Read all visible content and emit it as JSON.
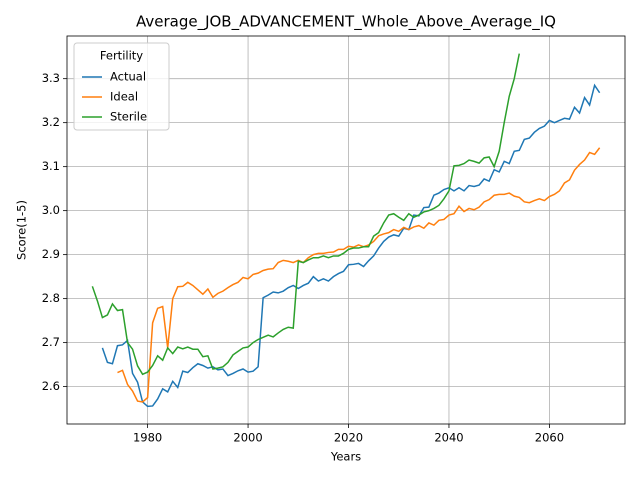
{
  "chart_data": {
    "type": "line",
    "title": "Average_JOB_ADVANCEMENT_Whole_Above_Average_IQ",
    "x_label": "Years",
    "y_label": "Score(1-5)",
    "legend_title": "Fertility",
    "legend_loc": "upper left",
    "grid": true,
    "xlim": [
      1963.95,
      2075.05
    ],
    "ylim": [
      2.515,
      3.397
    ],
    "xticks": [
      1980,
      2000,
      2020,
      2040,
      2060
    ],
    "yticks": [
      2.6,
      2.7,
      2.8,
      2.9,
      {
        "value": 3,
        "label": "3.0"
      },
      3.1,
      3.2,
      3.3
    ],
    "x": [
      1969,
      1970,
      1971,
      1972,
      1973,
      1974,
      1975,
      1976,
      1977,
      1978,
      1979,
      1980,
      1981,
      1982,
      1983,
      1984,
      1985,
      1986,
      1987,
      1988,
      1989,
      1990,
      1991,
      1992,
      1993,
      1994,
      1995,
      1996,
      1997,
      1998,
      1999,
      2000,
      2001,
      2002,
      2003,
      2004,
      2005,
      2006,
      2007,
      2008,
      2009,
      2010,
      2011,
      2012,
      2013,
      2014,
      2015,
      2016,
      2017,
      2018,
      2019,
      2020,
      2021,
      2022,
      2023,
      2024,
      2025,
      2026,
      2027,
      2028,
      2029,
      2030,
      2031,
      2032,
      2033,
      2034,
      2035,
      2036,
      2037,
      2038,
      2039,
      2040,
      2041,
      2042,
      2043,
      2044,
      2045,
      2046,
      2047,
      2048,
      2049,
      2050,
      2051,
      2052,
      2053,
      2054,
      2055,
      2056,
      2057,
      2058,
      2059,
      2060,
      2061,
      2062,
      2063,
      2064,
      2065,
      2066,
      2067,
      2068,
      2069,
      2070
    ],
    "series": [
      {
        "name": "Actual",
        "color": "#1f77b4",
        "values": [
          null,
          null,
          2.688,
          2.655,
          2.652,
          2.693,
          2.695,
          2.705,
          2.63,
          2.61,
          2.565,
          2.555,
          2.556,
          2.572,
          2.595,
          2.588,
          2.612,
          2.598,
          2.635,
          2.632,
          2.643,
          2.652,
          2.648,
          2.642,
          2.645,
          2.638,
          2.64,
          2.625,
          2.63,
          2.636,
          2.64,
          2.633,
          2.635,
          2.645,
          2.802,
          2.808,
          2.815,
          2.813,
          2.817,
          2.825,
          2.83,
          2.823,
          2.83,
          2.835,
          2.85,
          2.84,
          2.845,
          2.84,
          2.85,
          2.857,
          2.862,
          2.877,
          2.878,
          2.88,
          2.873,
          2.886,
          2.897,
          2.915,
          2.93,
          2.94,
          2.945,
          2.942,
          2.96,
          2.957,
          2.99,
          2.988,
          3.007,
          3.008,
          3.035,
          3.04,
          3.048,
          3.052,
          3.045,
          3.052,
          3.045,
          3.057,
          3.055,
          3.058,
          3.072,
          3.067,
          3.093,
          3.088,
          3.112,
          3.107,
          3.135,
          3.137,
          3.162,
          3.165,
          3.178,
          3.187,
          3.192,
          3.205,
          3.2,
          3.205,
          3.21,
          3.208,
          3.235,
          3.222,
          3.257,
          3.24,
          3.285,
          3.268
        ]
      },
      {
        "name": "Ideal",
        "color": "#ff7f0e",
        "values": [
          null,
          null,
          null,
          null,
          null,
          2.632,
          2.637,
          2.605,
          2.59,
          2.567,
          2.565,
          2.575,
          2.745,
          2.778,
          2.782,
          2.688,
          2.8,
          2.827,
          2.828,
          2.837,
          2.83,
          2.82,
          2.81,
          2.822,
          2.803,
          2.812,
          2.817,
          2.825,
          2.832,
          2.837,
          2.848,
          2.845,
          2.855,
          2.858,
          2.864,
          2.867,
          2.868,
          2.882,
          2.887,
          2.885,
          2.882,
          2.887,
          2.882,
          2.893,
          2.9,
          2.903,
          2.903,
          2.905,
          2.906,
          2.912,
          2.912,
          2.919,
          2.917,
          2.922,
          2.918,
          2.922,
          2.93,
          2.943,
          2.947,
          2.95,
          2.957,
          2.953,
          2.962,
          2.957,
          2.963,
          2.966,
          2.96,
          2.972,
          2.967,
          2.978,
          2.98,
          2.99,
          2.993,
          3.01,
          2.998,
          3.005,
          3.002,
          3.008,
          3.02,
          3.025,
          3.035,
          3.037,
          3.037,
          3.04,
          3.033,
          3.03,
          3.02,
          3.018,
          3.023,
          3.027,
          3.023,
          3.032,
          3.037,
          3.045,
          3.063,
          3.07,
          3.092,
          3.105,
          3.115,
          3.132,
          3.128,
          3.143
        ]
      },
      {
        "name": "Sterile",
        "color": "#2ca02c",
        "values": [
          2.828,
          2.795,
          2.757,
          2.763,
          2.788,
          2.773,
          2.775,
          2.7,
          2.685,
          2.647,
          2.628,
          2.633,
          2.648,
          2.67,
          2.66,
          2.688,
          2.675,
          2.69,
          2.686,
          2.69,
          2.685,
          2.685,
          2.668,
          2.67,
          2.64,
          2.642,
          2.645,
          2.655,
          2.672,
          2.68,
          2.688,
          2.69,
          2.7,
          2.707,
          2.712,
          2.717,
          2.713,
          2.722,
          2.73,
          2.735,
          2.733,
          2.885,
          2.882,
          2.888,
          2.893,
          2.893,
          2.897,
          2.893,
          2.897,
          2.897,
          2.903,
          2.912,
          2.915,
          2.915,
          2.918,
          2.918,
          2.942,
          2.95,
          2.972,
          2.99,
          2.993,
          2.985,
          2.978,
          2.993,
          2.985,
          2.99,
          2.997,
          3.0,
          3.005,
          3.012,
          3.027,
          3.045,
          3.102,
          3.103,
          3.107,
          3.115,
          3.112,
          3.108,
          3.12,
          3.122,
          3.1,
          3.135,
          3.2,
          3.26,
          3.3,
          3.357,
          null,
          null,
          null,
          null,
          null,
          null,
          null,
          null,
          null,
          null,
          null,
          null,
          null,
          null,
          null,
          null
        ]
      }
    ]
  }
}
